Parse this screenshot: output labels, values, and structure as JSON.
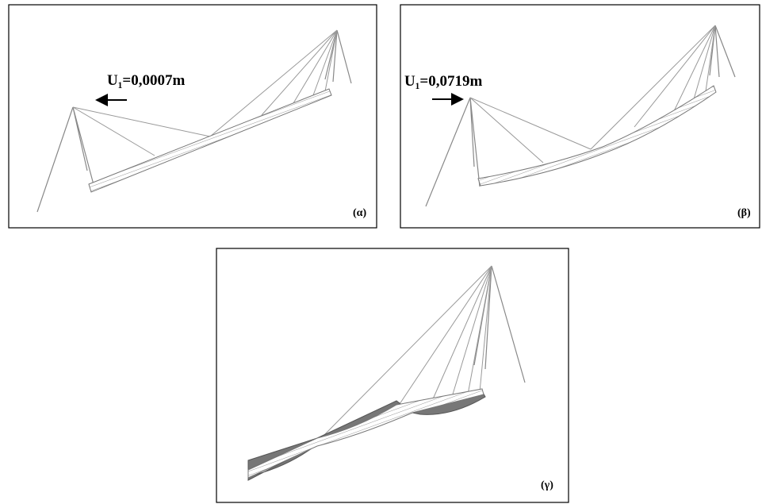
{
  "panels": [
    {
      "annotation": "U₁=0,0007m",
      "label": "(α)"
    },
    {
      "annotation": "U₁=0,0719m",
      "label": "(β)"
    },
    {
      "label": "(γ)"
    }
  ]
}
